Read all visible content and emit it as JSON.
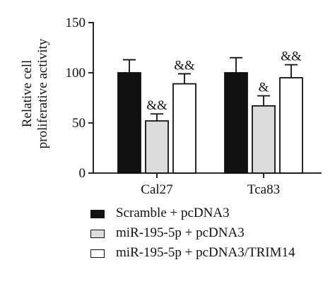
{
  "chart_data": {
    "type": "bar",
    "categories": [
      "Cal27",
      "Tca83"
    ],
    "ylabel_lines": [
      "Relative cell",
      "proliferative activity"
    ],
    "ylim": [
      0,
      150
    ],
    "yticks": [
      0,
      50,
      100,
      150
    ],
    "series": [
      {
        "name": "Scramble + pcDNA3",
        "color": "#111111",
        "values": [
          100,
          100
        ],
        "errors": [
          13,
          15
        ],
        "annotations": [
          "",
          ""
        ]
      },
      {
        "name": "miR-195-5p + pcDNA3",
        "color": "#dcdcdc",
        "values": [
          52,
          67
        ],
        "errors": [
          7,
          10
        ],
        "annotations": [
          "&&",
          "&"
        ]
      },
      {
        "name": "miR-195-5p + pcDNA3/TRIM14",
        "color": "#ffffff",
        "values": [
          89,
          95
        ],
        "errors": [
          10,
          13
        ],
        "annotations": [
          "&&",
          "&&"
        ]
      }
    ]
  }
}
